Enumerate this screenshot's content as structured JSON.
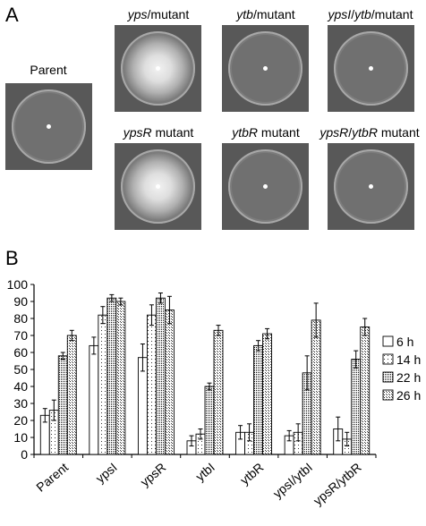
{
  "panel_a": {
    "label": "A",
    "plates": [
      {
        "id": "parent",
        "italic": "",
        "rest": "Parent",
        "halo": false
      },
      {
        "id": "yps",
        "italic": "yps",
        "rest": "/mutant",
        "halo": true
      },
      {
        "id": "ytb",
        "italic": "ytb",
        "rest": "/mutant",
        "halo": false
      },
      {
        "id": "ypsI-ytb",
        "italic": "ypsI",
        "rest": "/",
        "italic2": "ytb",
        "rest2": "/mutant",
        "halo": false
      },
      {
        "id": "ypsR",
        "italic": "ypsR",
        "rest": " mutant",
        "halo": true
      },
      {
        "id": "ytbR",
        "italic": "ytbR",
        "rest": " mutant",
        "halo": false
      },
      {
        "id": "ypsR-ytbR",
        "italic": "ypsR",
        "rest": "/",
        "italic2": "ytbR",
        "rest2": " mutant",
        "halo": false
      }
    ]
  },
  "panel_b": {
    "label": "B"
  },
  "chart_data": {
    "type": "bar",
    "categories": [
      "Parent",
      "ypsI",
      "ypsR",
      "ytbI",
      "ytbR",
      "ypsI/ytbI",
      "ypsR/ytbR"
    ],
    "series": [
      {
        "name": "6 h",
        "pattern": "open",
        "values": [
          23,
          64,
          57,
          8,
          13,
          11,
          15
        ],
        "errors": [
          4,
          5,
          8,
          3,
          4,
          3,
          7
        ]
      },
      {
        "name": "14 h",
        "pattern": "sparse",
        "values": [
          26,
          82,
          82,
          12,
          13,
          13,
          9
        ],
        "errors": [
          6,
          5,
          6,
          3,
          5,
          5,
          4
        ]
      },
      {
        "name": "22 h",
        "pattern": "dense",
        "values": [
          58,
          92,
          92,
          40,
          64,
          48,
          56
        ],
        "errors": [
          2,
          2,
          3,
          2,
          3,
          10,
          5
        ]
      },
      {
        "name": "26 h",
        "pattern": "medium",
        "values": [
          70,
          90,
          85,
          73,
          71,
          79,
          75
        ],
        "errors": [
          3,
          2,
          8,
          3,
          3,
          10,
          5
        ]
      }
    ],
    "yticks": [
      0,
      10,
      20,
      30,
      40,
      50,
      60,
      70,
      80,
      90,
      100
    ],
    "ylim": [
      0,
      100
    ],
    "title": "",
    "xlabel": "",
    "ylabel": "",
    "legend_position": "right"
  }
}
